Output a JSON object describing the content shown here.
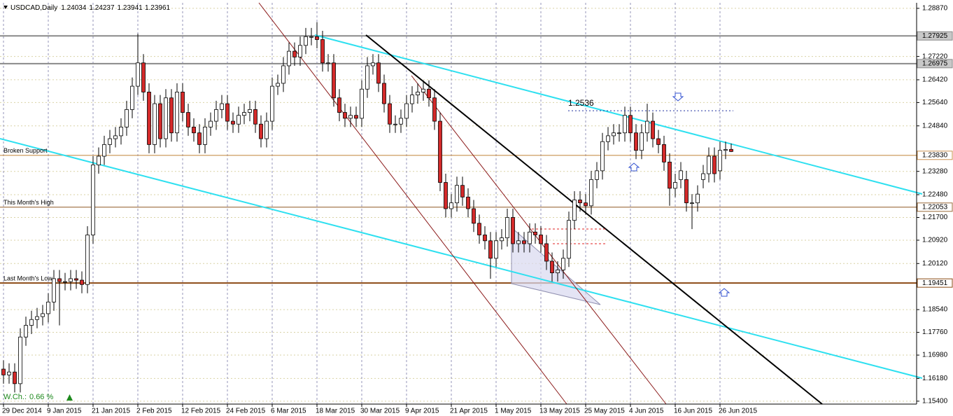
{
  "chart_data": {
    "type": "candlestick",
    "symbol": "USDCAD,Daily",
    "categories": [
      "29 Dec 2014",
      null,
      null,
      null,
      null,
      null,
      null,
      null,
      "9 Jan 2015",
      null,
      null,
      null,
      null,
      null,
      null,
      null,
      "21 Jan 2015",
      null,
      null,
      null,
      null,
      null,
      null,
      null,
      "2 Feb 2015",
      null,
      null,
      null,
      null,
      null,
      null,
      null,
      "12 Feb 2015",
      null,
      null,
      null,
      null,
      null,
      null,
      null,
      "24 Feb 2015",
      null,
      null,
      null,
      null,
      null,
      null,
      null,
      "6 Mar 2015",
      null,
      null,
      null,
      null,
      null,
      null,
      null,
      "18 Mar 2015",
      null,
      null,
      null,
      null,
      null,
      null,
      null,
      "30 Mar 2015",
      null,
      null,
      null,
      null,
      null,
      null,
      null,
      "9 Apr 2015",
      null,
      null,
      null,
      null,
      null,
      null,
      null,
      "21 Apr 2015",
      null,
      null,
      null,
      null,
      null,
      null,
      null,
      "1 May 2015",
      null,
      null,
      null,
      null,
      null,
      null,
      null,
      "13 May 2015",
      null,
      null,
      null,
      null,
      null,
      null,
      null,
      "25 May 2015",
      null,
      null,
      null,
      null,
      null,
      null,
      null,
      "4 Jun 2015",
      null,
      null,
      null,
      null,
      null,
      null,
      null,
      "16 Jun 2015",
      null,
      null,
      null,
      null,
      null,
      null,
      null,
      "26 Jun 2015",
      null,
      null
    ],
    "open": [
      1.165,
      1.163,
      1.164,
      1.16,
      1.176,
      1.18,
      1.182,
      1.183,
      1.184,
      1.188,
      1.196,
      1.195,
      1.195,
      1.196,
      1.1955,
      1.194,
      1.211,
      1.235,
      1.238,
      1.242,
      1.244,
      1.245,
      1.248,
      1.254,
      1.262,
      1.27,
      1.26,
      1.242,
      1.256,
      1.244,
      1.258,
      1.246,
      1.26,
      1.253,
      1.248,
      1.246,
      1.242,
      1.248,
      1.25,
      1.254,
      1.256,
      1.25,
      1.249,
      1.252,
      1.253,
      1.254,
      1.249,
      1.244,
      1.25,
      1.262,
      1.263,
      1.269,
      1.274,
      1.272,
      1.276,
      1.279,
      1.279,
      1.278,
      1.27,
      1.27,
      1.258,
      1.253,
      1.251,
      1.252,
      1.251,
      1.261,
      1.269,
      1.27,
      1.263,
      1.256,
      1.249,
      1.249,
      1.251,
      1.256,
      1.259,
      1.26,
      1.261,
      1.258,
      1.25,
      1.229,
      1.22,
      1.222,
      1.228,
      1.224,
      1.22,
      1.215,
      1.211,
      1.209,
      1.203,
      1.209,
      1.21,
      1.217,
      1.208,
      1.209,
      1.208,
      1.212,
      1.211,
      1.208,
      1.202,
      1.198,
      1.199,
      1.203,
      1.216,
      1.223,
      1.222,
      1.221,
      1.23,
      1.233,
      1.243,
      1.245,
      1.246,
      1.246,
      1.252,
      1.246,
      1.24,
      1.246,
      1.25,
      1.244,
      1.242,
      1.236,
      1.227,
      1.23,
      1.23,
      1.222,
      1.222,
      1.23,
      1.232,
      1.238,
      1.233,
      1.24,
      1.24034
    ],
    "high": [
      1.168,
      1.167,
      1.167,
      1.179,
      1.183,
      1.185,
      1.186,
      1.187,
      1.191,
      1.199,
      1.199,
      1.198,
      1.199,
      1.199,
      1.1985,
      1.214,
      1.238,
      1.241,
      1.245,
      1.247,
      1.248,
      1.251,
      1.257,
      1.265,
      1.28,
      1.273,
      1.263,
      1.259,
      1.259,
      1.261,
      1.261,
      1.263,
      1.263,
      1.256,
      1.251,
      1.249,
      1.251,
      1.253,
      1.257,
      1.259,
      1.259,
      1.253,
      1.255,
      1.256,
      1.257,
      1.257,
      1.252,
      1.253,
      1.265,
      1.266,
      1.272,
      1.277,
      1.277,
      1.279,
      1.282,
      1.282,
      1.284,
      1.281,
      1.273,
      1.273,
      1.261,
      1.256,
      1.255,
      1.255,
      1.264,
      1.272,
      1.273,
      1.273,
      1.266,
      1.259,
      1.252,
      1.254,
      1.259,
      1.262,
      1.263,
      1.264,
      1.264,
      1.261,
      1.253,
      1.232,
      1.225,
      1.231,
      1.231,
      1.227,
      1.223,
      1.218,
      1.214,
      1.212,
      1.212,
      1.213,
      1.22,
      1.22,
      1.212,
      1.212,
      1.215,
      1.215,
      1.214,
      1.211,
      1.205,
      1.202,
      1.206,
      1.219,
      1.226,
      1.226,
      1.225,
      1.233,
      1.236,
      1.246,
      1.248,
      1.249,
      1.249,
      1.255,
      1.255,
      1.249,
      1.249,
      1.256,
      1.253,
      1.247,
      1.245,
      1.239,
      1.232,
      1.236,
      1.233,
      1.225,
      1.228,
      1.235,
      1.241,
      1.241,
      1.243,
      1.243,
      1.24237
    ],
    "low": [
      1.16,
      1.16,
      1.157,
      1.157,
      1.173,
      1.177,
      1.179,
      1.18,
      1.181,
      1.185,
      1.18,
      1.192,
      1.192,
      1.1925,
      1.191,
      1.191,
      1.208,
      1.232,
      1.235,
      1.239,
      1.241,
      1.242,
      1.245,
      1.251,
      1.259,
      1.257,
      1.239,
      1.239,
      1.241,
      1.241,
      1.243,
      1.243,
      1.25,
      1.245,
      1.243,
      1.239,
      1.239,
      1.245,
      1.247,
      1.251,
      1.247,
      1.246,
      1.246,
      1.249,
      1.25,
      1.246,
      1.241,
      1.241,
      1.247,
      1.259,
      1.26,
      1.266,
      1.269,
      1.269,
      1.273,
      1.276,
      1.275,
      1.267,
      1.267,
      1.255,
      1.25,
      1.248,
      1.248,
      1.248,
      1.248,
      1.258,
      1.266,
      1.26,
      1.253,
      1.246,
      1.246,
      1.246,
      1.248,
      1.253,
      1.256,
      1.257,
      1.255,
      1.247,
      1.226,
      1.217,
      1.217,
      1.219,
      1.221,
      1.217,
      1.212,
      1.208,
      1.206,
      1.196,
      1.2,
      1.206,
      1.207,
      1.205,
      1.205,
      1.205,
      1.205,
      1.208,
      1.205,
      1.199,
      1.195,
      1.195,
      1.196,
      1.2,
      1.213,
      1.219,
      1.218,
      1.218,
      1.227,
      1.23,
      1.24,
      1.242,
      1.243,
      1.243,
      1.243,
      1.237,
      1.237,
      1.243,
      1.241,
      1.239,
      1.233,
      1.221,
      1.224,
      1.227,
      1.219,
      1.213,
      1.219,
      1.227,
      1.229,
      1.229,
      1.23,
      1.237,
      1.23941
    ],
    "close": [
      1.163,
      1.164,
      1.16,
      1.176,
      1.18,
      1.182,
      1.183,
      1.184,
      1.188,
      1.196,
      1.195,
      1.195,
      1.196,
      1.1955,
      1.194,
      1.211,
      1.235,
      1.238,
      1.242,
      1.244,
      1.245,
      1.248,
      1.254,
      1.262,
      1.27,
      1.26,
      1.242,
      1.256,
      1.244,
      1.258,
      1.246,
      1.26,
      1.253,
      1.248,
      1.246,
      1.242,
      1.248,
      1.25,
      1.254,
      1.256,
      1.25,
      1.249,
      1.252,
      1.253,
      1.254,
      1.249,
      1.244,
      1.25,
      1.262,
      1.263,
      1.269,
      1.274,
      1.272,
      1.276,
      1.279,
      1.279,
      1.278,
      1.27,
      1.27,
      1.258,
      1.253,
      1.251,
      1.252,
      1.251,
      1.261,
      1.269,
      1.27,
      1.263,
      1.256,
      1.249,
      1.249,
      1.251,
      1.256,
      1.259,
      1.26,
      1.261,
      1.258,
      1.25,
      1.229,
      1.22,
      1.222,
      1.228,
      1.224,
      1.22,
      1.215,
      1.211,
      1.209,
      1.203,
      1.209,
      1.21,
      1.217,
      1.208,
      1.209,
      1.208,
      1.212,
      1.211,
      1.208,
      1.202,
      1.198,
      1.199,
      1.203,
      1.216,
      1.223,
      1.222,
      1.221,
      1.23,
      1.233,
      1.243,
      1.245,
      1.246,
      1.246,
      1.252,
      1.246,
      1.24,
      1.246,
      1.25,
      1.244,
      1.242,
      1.236,
      1.227,
      1.229,
      1.233,
      1.222,
      1.222,
      1.225,
      1.232,
      1.238,
      1.232,
      1.24,
      1.2403,
      1.23961
    ],
    "up_color": "#ffffff",
    "down_color": "#d42a2a",
    "ylim": [
      1.153,
      1.2906
    ],
    "yticks": [
      {
        "value": 1.2887,
        "label": "1.28870"
      },
      {
        "value": 1.2722,
        "label": "1.27220"
      },
      {
        "value": 1.2642,
        "label": "1.26420"
      },
      {
        "value": 1.2564,
        "label": "1.25640"
      },
      {
        "value": 1.2484,
        "label": "1.24840"
      },
      {
        "value": 1.2328,
        "label": "1.23280"
      },
      {
        "value": 1.2248,
        "label": "1.22480"
      },
      {
        "value": 1.217,
        "label": "1.21700"
      },
      {
        "value": 1.2092,
        "label": "1.20920"
      },
      {
        "value": 1.2012,
        "label": "1.20120"
      },
      {
        "value": 1.1854,
        "label": "1.18540"
      },
      {
        "value": 1.1776,
        "label": "1.17760"
      },
      {
        "value": 1.1698,
        "label": "1.16980"
      },
      {
        "value": 1.1618,
        "label": "1.16180"
      },
      {
        "value": 1.154,
        "label": "1.15400"
      }
    ],
    "grid": true,
    "levels": [
      {
        "value": 1.27925,
        "color": "#8a8a8a"
      },
      {
        "value": 1.26975,
        "color": "#8a8a8a"
      },
      {
        "value": 1.2383,
        "label": "1.23830",
        "name": "Broken Support",
        "color": "#c8904e"
      },
      {
        "value": 1.22053,
        "name": "This Month's High",
        "color": "#9a6a3a"
      },
      {
        "value": 1.19451,
        "name": "Last Month's Low",
        "color": "#8b4a14"
      }
    ],
    "annotation": {
      "value": 1.2536
    },
    "weekly_change": {
      "label": "W.Ch.:",
      "value": 0.66,
      "unit": "%"
    }
  }
}
